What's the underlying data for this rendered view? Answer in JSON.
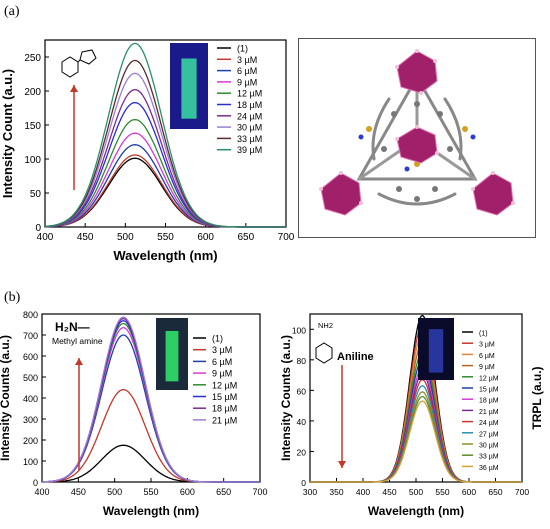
{
  "figure": {
    "panel_a_label": "(a)",
    "panel_b_label": "(b)"
  },
  "chart_data": [
    {
      "id": "a",
      "type": "line",
      "xlabel": "Wavelength (nm)",
      "ylabel": "Intensity Count (a.u.)",
      "xlim": [
        400,
        700
      ],
      "ylim": [
        0,
        275
      ],
      "xticks": [
        400,
        450,
        500,
        550,
        600,
        650,
        700
      ],
      "yticks": [
        0,
        50,
        100,
        150,
        200,
        250
      ],
      "peak_x": 512,
      "legend_position": "top-right",
      "legend": [
        "(1)",
        "3 µM",
        "6 µM",
        "9 µM",
        "12 µM",
        "18 µM",
        "24 µM",
        "30 µM",
        "33 µM",
        "39 µM"
      ],
      "series": [
        {
          "name": "(1)",
          "peak": 101,
          "color": "#000000"
        },
        {
          "name": "3 µM",
          "peak": 106,
          "color": "#c0392b"
        },
        {
          "name": "6 µM",
          "peak": 121,
          "color": "#1f3fa8"
        },
        {
          "name": "9 µM",
          "peak": 138,
          "color": "#d63ad6"
        },
        {
          "name": "12 µM",
          "peak": 158,
          "color": "#2e8b2e"
        },
        {
          "name": "18 µM",
          "peak": 183,
          "color": "#2b2bd6"
        },
        {
          "name": "24 µM",
          "peak": 202,
          "color": "#7b2a8f"
        },
        {
          "name": "30 µM",
          "peak": 226,
          "color": "#9a7fd6"
        },
        {
          "name": "33 µM",
          "peak": 245,
          "color": "#5a2a2a"
        },
        {
          "name": "39 µM",
          "peak": 270,
          "color": "#2a8f6a"
        }
      ],
      "arrow": "up",
      "colors": {
        "vial_fluor": "#39d3a0",
        "vial_bg": "#1a1a8a"
      }
    },
    {
      "id": "b-left",
      "type": "line",
      "xlabel": "Wavelength (nm)",
      "ylabel": "Intensity Counts (a.u.)",
      "xlim": [
        400,
        700
      ],
      "ylim": [
        0,
        800
      ],
      "xticks": [
        400,
        450,
        500,
        550,
        600,
        650,
        700
      ],
      "yticks": [
        0,
        100,
        200,
        300,
        400,
        500,
        600,
        700,
        800
      ],
      "peak_x": 512,
      "legend_position": "right",
      "legend": [
        "(1)",
        "3 µM",
        "6 µM",
        "9 µM",
        "12 µM",
        "15 µM",
        "18 µM",
        "21 µM"
      ],
      "annotation_formula": "H₂N—",
      "annotation_name": "Methyl amine",
      "series": [
        {
          "name": "(1)",
          "peak": 175,
          "color": "#000000"
        },
        {
          "name": "3 µM",
          "peak": 440,
          "color": "#c0392b"
        },
        {
          "name": "6 µM",
          "peak": 700,
          "color": "#1f3fa8"
        },
        {
          "name": "9 µM",
          "peak": 735,
          "color": "#d63ad6"
        },
        {
          "name": "12 µM",
          "peak": 755,
          "color": "#2e8b2e"
        },
        {
          "name": "15 µM",
          "peak": 768,
          "color": "#2b2bd6"
        },
        {
          "name": "18 µM",
          "peak": 778,
          "color": "#7b2a8f"
        },
        {
          "name": "21 µM",
          "peak": 785,
          "color": "#9a7fd6"
        }
      ],
      "arrow": "up",
      "colors": {
        "vial_fluor": "#2fe06a",
        "vial_bg": "#1a2a3a"
      }
    },
    {
      "id": "b-right",
      "type": "line",
      "xlabel": "Wavelength (nm)",
      "ylabel": "Intensity Counts (a.u.)",
      "ylabel_right": "TRPL (a.u.)",
      "xlim": [
        300,
        700
      ],
      "ylim": [
        0,
        110
      ],
      "xticks": [
        300,
        350,
        400,
        450,
        500,
        550,
        600,
        650,
        700
      ],
      "yticks": [
        0,
        20,
        40,
        60,
        80,
        100
      ],
      "peak_x": 512,
      "legend_position": "right",
      "legend": [
        "(1)",
        "3 µM",
        "6 µM",
        "9 µM",
        "12 µM",
        "15 µM",
        "18 µM",
        "21 µM",
        "24 µM",
        "27 µM",
        "30 µM",
        "33 µM",
        "36 µM"
      ],
      "annotation_formula": "NH2",
      "annotation_name": "Aniline",
      "series": [
        {
          "name": "(1)",
          "peak": 109,
          "color": "#000000"
        },
        {
          "name": "3 µM",
          "peak": 103,
          "color": "#c0392b"
        },
        {
          "name": "6 µM",
          "peak": 97,
          "color": "#d98a3a"
        },
        {
          "name": "9 µM",
          "peak": 91,
          "color": "#b5651d"
        },
        {
          "name": "12 µM",
          "peak": 85,
          "color": "#2e8b2e"
        },
        {
          "name": "15 µM",
          "peak": 80,
          "color": "#1f3fa8"
        },
        {
          "name": "18 µM",
          "peak": 75,
          "color": "#d63ad6"
        },
        {
          "name": "21 µM",
          "peak": 71,
          "color": "#7b2a8f"
        },
        {
          "name": "24 µM",
          "peak": 67,
          "color": "#c0392b"
        },
        {
          "name": "27 µM",
          "peak": 63,
          "color": "#2a8fb0"
        },
        {
          "name": "30 µM",
          "peak": 59,
          "color": "#8f8f2a"
        },
        {
          "name": "33 µM",
          "peak": 56,
          "color": "#5a8f2a"
        },
        {
          "name": "36 µM",
          "peak": 53,
          "color": "#d6a03a"
        }
      ],
      "arrow": "down",
      "colors": {
        "vial_fluor": "#2a3aa8",
        "vial_bg": "#0a0a2a"
      }
    }
  ]
}
